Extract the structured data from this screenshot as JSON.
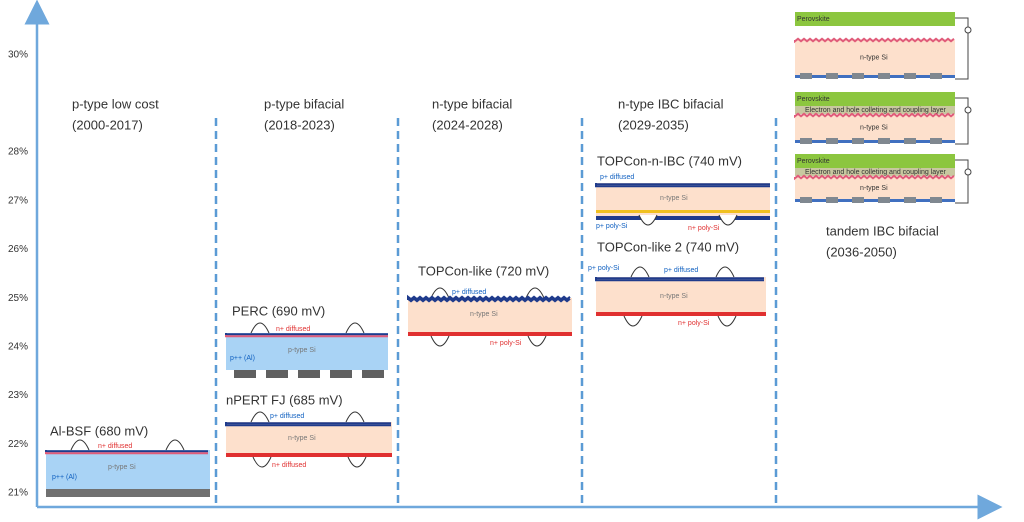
{
  "axis": {
    "ticks": [
      {
        "value": 21,
        "label": "21%"
      },
      {
        "value": 22,
        "label": "22%"
      },
      {
        "value": 23,
        "label": "23%"
      },
      {
        "value": 24,
        "label": "24%"
      },
      {
        "value": 25,
        "label": "25%"
      },
      {
        "value": 26,
        "label": "26%"
      },
      {
        "value": 27,
        "label": "27%"
      },
      {
        "value": 28,
        "label": "28%"
      },
      {
        "value": 30,
        "label": "30%"
      }
    ]
  },
  "periods": [
    {
      "name": "p-type low cost",
      "years": "(2000-2017)"
    },
    {
      "name": "p-type bifacial",
      "years": "(2018-2023)"
    },
    {
      "name": "n-type bifacial",
      "years": "(2024-2028)"
    },
    {
      "name": "n-type IBC bifacial",
      "years": "(2029-2035)"
    },
    {
      "name": "tandem IBC bifacial",
      "years": "(2036-2050)"
    }
  ],
  "cells": [
    {
      "title": "Al-BSF (680 mV)",
      "labels": [
        "n+ diffused",
        "p-type Si",
        "p++ (Al)"
      ]
    },
    {
      "title": "PERC (690 mV)",
      "labels": [
        "n+ diffused",
        "p-type Si",
        "p++ (Al)"
      ]
    },
    {
      "title": "nPERT FJ (685 mV)",
      "labels": [
        "p+ diffused",
        "n-type Si",
        "n+ diffused"
      ]
    },
    {
      "title": "TOPCon-like (720 mV)",
      "labels": [
        "p+ diffused",
        "n-type Si",
        "n+ poly-Si"
      ]
    },
    {
      "title": "TOPCon-n-IBC (740 mV)",
      "labels": [
        "p+ diffused",
        "n-type Si",
        "p+ poly-Si",
        "n+ poly-Si"
      ]
    },
    {
      "title": "TOPCon-like 2 (740 mV)",
      "labels": [
        "p+ poly-Si",
        "p+ diffused",
        "n-type Si",
        "n+ poly-Si"
      ]
    }
  ],
  "tandem": [
    {
      "labels": [
        "Perovskite",
        "n-type Si"
      ]
    },
    {
      "labels": [
        "Perovskite",
        "Electron and hole colleting and coupling layer",
        "n-type Si"
      ]
    },
    {
      "labels": [
        "Perovskite",
        "Electron and hole colleting and coupling layer",
        "n-type Si"
      ]
    }
  ]
}
